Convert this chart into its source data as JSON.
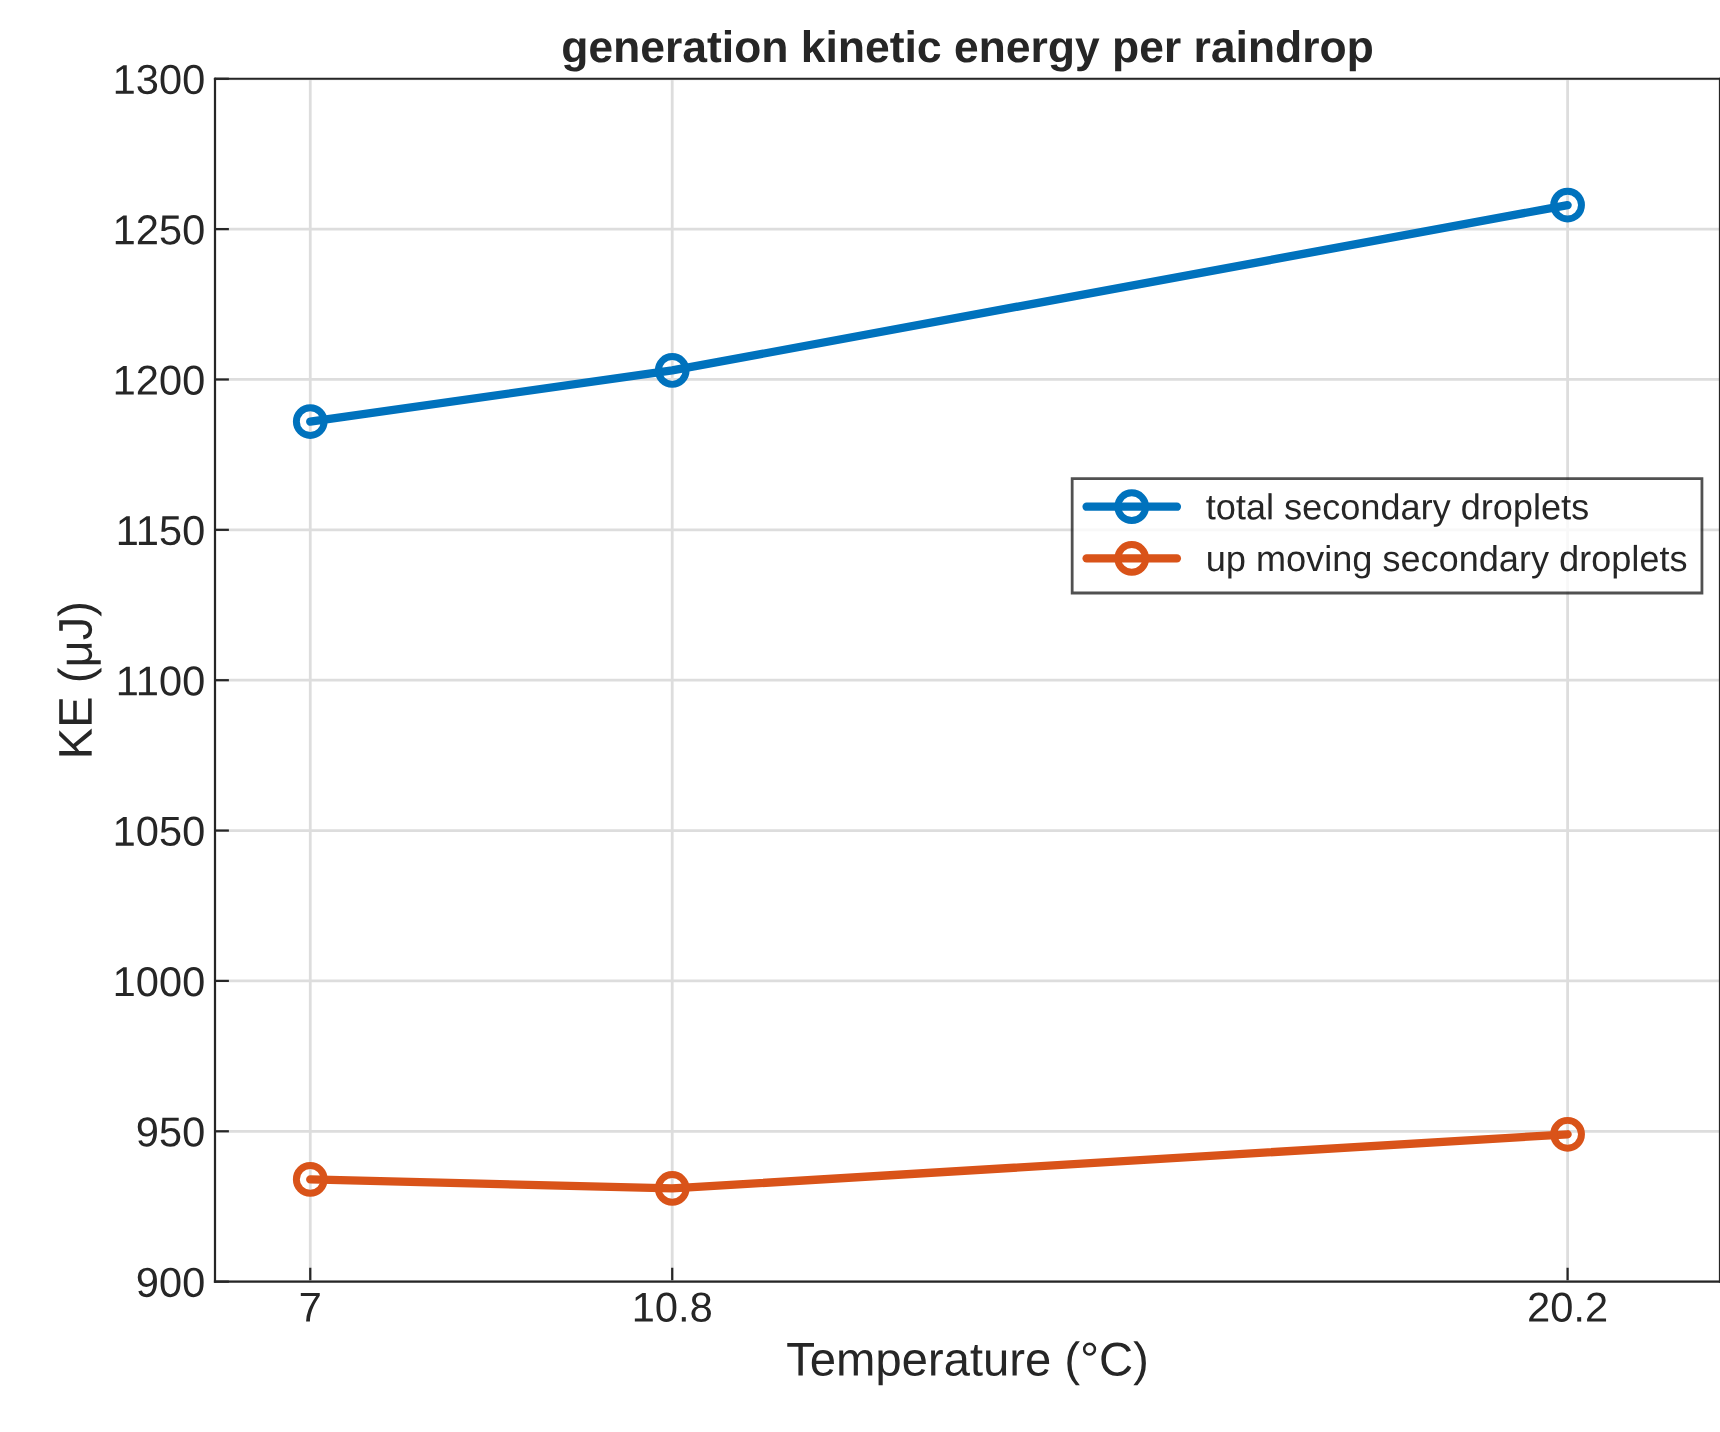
{
  "chart_data": {
    "type": "line",
    "title": "generation kinetic energy per raindrop",
    "xlabel": "Temperature (°C)",
    "ylabel": "KE (μJ)",
    "x": [
      7,
      10.8,
      20.2
    ],
    "series": [
      {
        "name": "total secondary droplets",
        "color": "#0072bd",
        "values": [
          1186,
          1203,
          1258
        ]
      },
      {
        "name": "up moving secondary droplets",
        "color": "#d95319",
        "values": [
          934,
          931,
          949
        ]
      }
    ],
    "xlim": [
      6,
      21.8
    ],
    "xticks": [
      7,
      10.8,
      20.2
    ],
    "ylim": [
      900,
      1300
    ],
    "yticks": [
      900,
      950,
      1000,
      1050,
      1100,
      1150,
      1200,
      1250,
      1300
    ],
    "grid": true,
    "legend": "right",
    "marker": "circle",
    "line_style": "solid"
  }
}
